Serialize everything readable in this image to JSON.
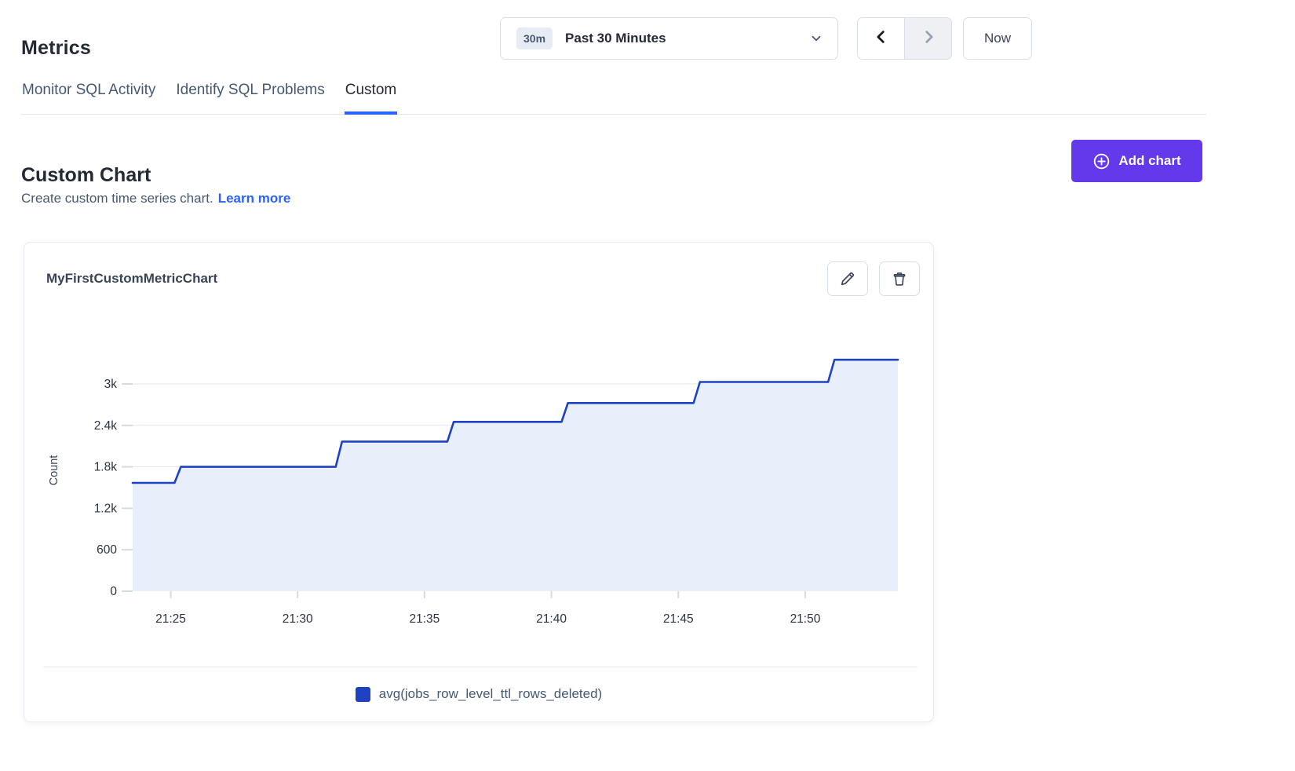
{
  "page_title": "Metrics",
  "toolbar": {
    "time_badge": "30m",
    "time_label": "Past 30 Minutes",
    "now_label": "Now"
  },
  "tabs": {
    "items": [
      {
        "label": "Monitor SQL Activity"
      },
      {
        "label": "Identify SQL Problems"
      },
      {
        "label": "Custom"
      }
    ],
    "active": "Custom"
  },
  "section": {
    "heading": "Custom Chart",
    "description": "Create custom time series chart.",
    "learn_more": "Learn more",
    "add_chart": "Add chart"
  },
  "card": {
    "title": "MyFirstCustomMetricChart"
  },
  "chart_data": {
    "type": "area",
    "step": true,
    "title": "MyFirstCustomMetricChart",
    "xlabel": "",
    "ylabel": "Count",
    "x_range_label": [
      "21:23",
      "21:54"
    ],
    "ylim": [
      0,
      3600
    ],
    "grid": true,
    "legend_position": "bottom",
    "y_ticks": [
      {
        "value": 0,
        "label": "0"
      },
      {
        "value": 600,
        "label": "600"
      },
      {
        "value": 1200,
        "label": "1.2k"
      },
      {
        "value": 1800,
        "label": "1.8k"
      },
      {
        "value": 2400,
        "label": "2.4k"
      },
      {
        "value": 3000,
        "label": "3k"
      }
    ],
    "x_ticks": [
      {
        "minute": 25,
        "label": "21:25"
      },
      {
        "minute": 30,
        "label": "21:30"
      },
      {
        "minute": 35,
        "label": "21:35"
      },
      {
        "minute": 40,
        "label": "21:40"
      },
      {
        "minute": 45,
        "label": "21:45"
      },
      {
        "minute": 50,
        "label": "21:50"
      }
    ],
    "series": [
      {
        "name": "avg(jobs_row_level_ttl_rows_deleted)",
        "color": "#1e42c2",
        "fill_color": "#e9eefb",
        "points_minute_value": [
          [
            23.5,
            1568
          ],
          [
            25.15,
            1568
          ],
          [
            25.4,
            1800
          ],
          [
            31.5,
            1800
          ],
          [
            31.75,
            2166
          ],
          [
            35.9,
            2166
          ],
          [
            36.15,
            2451
          ],
          [
            40.4,
            2451
          ],
          [
            40.65,
            2724
          ],
          [
            45.6,
            2724
          ],
          [
            45.85,
            3028
          ],
          [
            50.9,
            3028
          ],
          [
            51.15,
            3350
          ],
          [
            53.65,
            3350
          ]
        ]
      }
    ]
  },
  "colors": {
    "accent_blue": "#2962ff",
    "series_line": "#1e42c2",
    "series_fill": "#e9eefb",
    "button_purple": "#6439ec",
    "text_dark": "#242a35",
    "text_slate": "#475872",
    "border_gray": "#d9dfe9",
    "gridline": "#e3e6ed"
  }
}
